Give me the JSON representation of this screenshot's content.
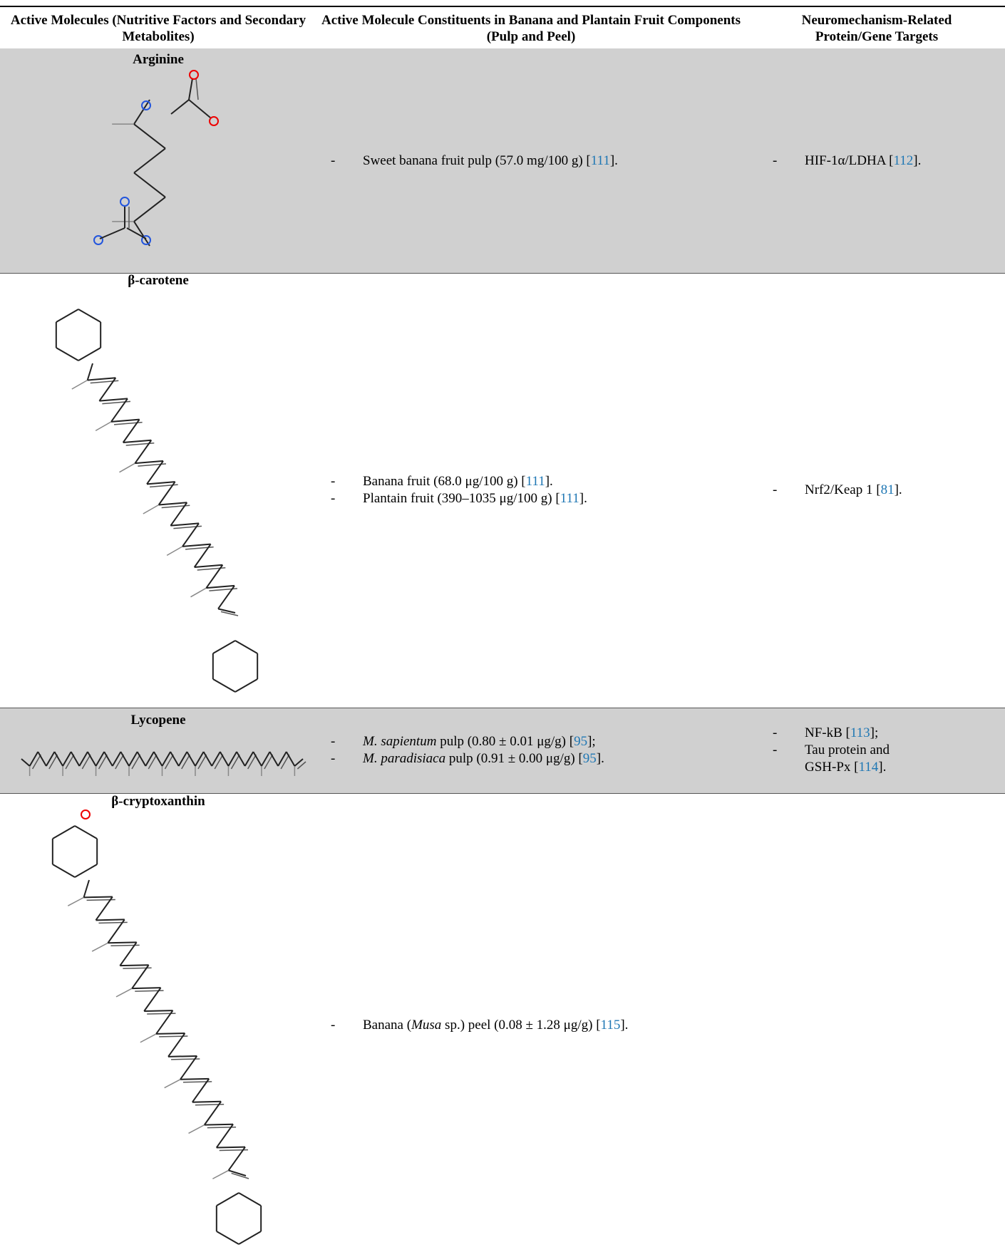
{
  "bullet": "-",
  "table": {
    "headers": [
      "Active Molecules (Nutritive Factors and Secondary Metabolites)",
      "Active Molecule Constituents in Banana and Plantain Fruit Components (Pulp and Peel)",
      "Neuromechanism-Related Protein/Gene Targets"
    ],
    "rows": [
      {
        "molecule": "Arginine",
        "constituents": [
          [
            {
              "text": "Sweet banana fruit pulp (57.0 mg/100 g) ["
            },
            {
              "ref": "111"
            },
            {
              "text": "]."
            }
          ]
        ],
        "targets": [
          [
            {
              "text": "HIF-1α/LDHA ["
            },
            {
              "ref": "112"
            },
            {
              "text": "]."
            }
          ]
        ]
      },
      {
        "molecule": "β-carotene",
        "constituents": [
          [
            {
              "text": "Banana fruit (68.0 μg/100 g) ["
            },
            {
              "ref": "111"
            },
            {
              "text": "]."
            }
          ],
          [
            {
              "text": "Plantain fruit (390–1035 μg/100 g) ["
            },
            {
              "ref": "111"
            },
            {
              "text": "]."
            }
          ]
        ],
        "targets": [
          [
            {
              "text": "Nrf2/Keap 1 ["
            },
            {
              "ref": "81"
            },
            {
              "text": "]."
            }
          ]
        ]
      },
      {
        "molecule": "Lycopene",
        "constituents": [
          [
            {
              "italic": "M. sapientum"
            },
            {
              "text": " pulp (0.80 ± 0.01 μg/g) ["
            },
            {
              "ref": "95"
            },
            {
              "text": "];"
            }
          ],
          [
            {
              "italic": "M. paradisiaca"
            },
            {
              "text": " pulp (0.91 ± 0.00 μg/g) ["
            },
            {
              "ref": "95"
            },
            {
              "text": "]."
            }
          ]
        ],
        "targets": [
          [
            {
              "text": "NF-kB ["
            },
            {
              "ref": "113"
            },
            {
              "text": "];"
            }
          ],
          [
            {
              "text": "Tau protein and GSH-Px ["
            },
            {
              "ref": "114"
            },
            {
              "text": "]."
            }
          ]
        ]
      },
      {
        "molecule": "β-cryptoxanthin",
        "constituents": [
          [
            {
              "text": "Banana ("
            },
            {
              "italic": "Musa"
            },
            {
              "text": " sp.) peel (0.08 ± 1.28 μg/g) ["
            },
            {
              "ref": "115"
            },
            {
              "text": "]."
            }
          ]
        ],
        "targets": []
      }
    ]
  }
}
